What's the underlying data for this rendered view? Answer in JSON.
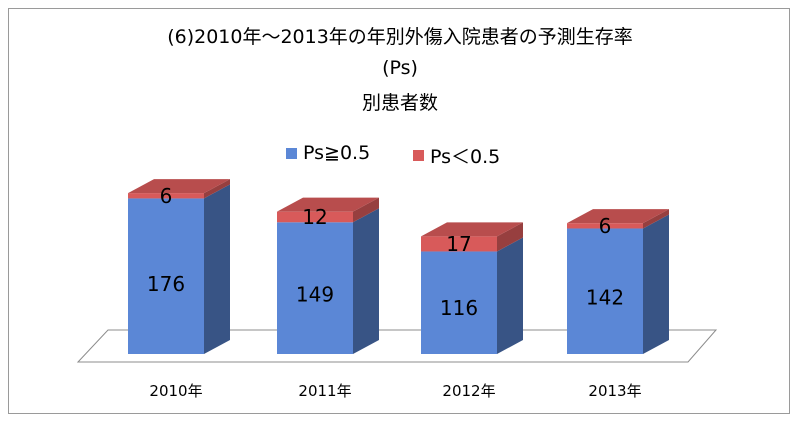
{
  "chart_data": {
    "type": "bar",
    "stacked": true,
    "three_d": true,
    "title_lines": [
      "(6)2010年～2013年の年別外傷入院患者の予測生存率",
      "(Ps)",
      "別患者数"
    ],
    "categories": [
      "2010年",
      "2011年",
      "2012年",
      "2013年"
    ],
    "series": [
      {
        "name": "Ps≧0.5",
        "values": [
          176,
          149,
          116,
          142
        ],
        "color": "#5B87D6"
      },
      {
        "name": "Ps＜0.5",
        "values": [
          6,
          12,
          17,
          6
        ],
        "color": "#D85A5A"
      }
    ],
    "legend_position": "top",
    "grid": false
  }
}
